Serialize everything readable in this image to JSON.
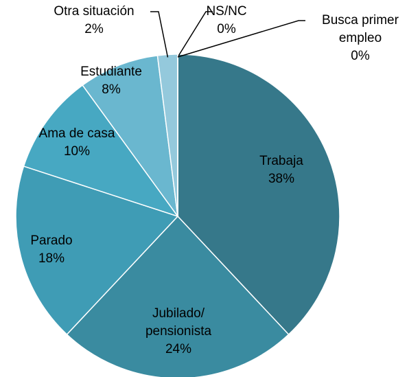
{
  "chart_data": {
    "type": "pie",
    "categories": [
      "Trabaja",
      "Jubilado/\npensionista",
      "Parado",
      "Ama de casa",
      "Estudiante",
      "Otra situación",
      "NS/NC",
      "Busca primer\nempleo"
    ],
    "values": [
      38,
      24,
      18,
      10,
      8,
      2,
      0,
      0
    ],
    "value_labels": [
      "38%",
      "24%",
      "18%",
      "10%",
      "8%",
      "2%",
      "0%",
      "0%"
    ],
    "colors": [
      "#36788a",
      "#3a8ba0",
      "#3f9cb5",
      "#47a8c2",
      "#6ab7cf",
      "#94c9dc",
      "#b4d7e5",
      "#cfe3ee"
    ]
  }
}
